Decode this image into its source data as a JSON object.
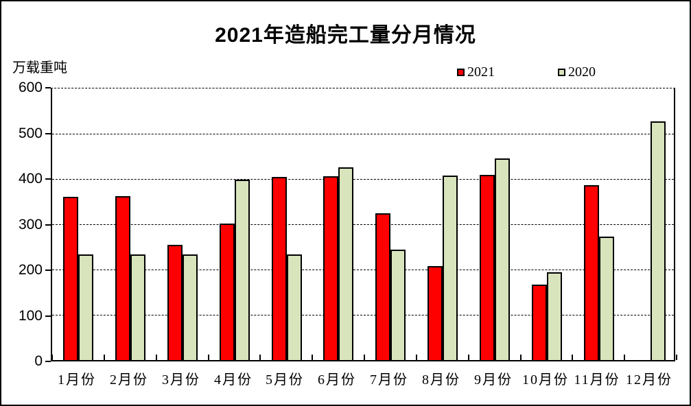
{
  "title": "2021年造船完工量分月情况",
  "unit_label": "万载重吨",
  "legend": {
    "items": [
      {
        "label": "2021",
        "color": "#FF0000"
      },
      {
        "label": "2020",
        "color": "#D8E4BC"
      }
    ]
  },
  "colors": {
    "series_2021": "#FF0000",
    "series_2020": "#D8E4BC",
    "axis": "#000000",
    "background": "#FFFFFF"
  },
  "chart_data": {
    "type": "bar",
    "title": "2021年造船完工量分月情况",
    "xlabel": "",
    "ylabel": "万载重吨",
    "categories": [
      "1月份",
      "2月份",
      "3月份",
      "4月份",
      "5月份",
      "6月份",
      "7月份",
      "8月份",
      "9月份",
      "10月份",
      "11月份",
      "12月份"
    ],
    "series": [
      {
        "name": "2021",
        "color": "#FF0000",
        "values": [
          360,
          362,
          255,
          301,
          405,
          406,
          325,
          208,
          409,
          166,
          387,
          null
        ]
      },
      {
        "name": "2020",
        "color": "#D8E4BC",
        "values": [
          233,
          234,
          233,
          398,
          234,
          426,
          244,
          407,
          446,
          194,
          272,
          528
        ]
      }
    ],
    "ylim": [
      0,
      600
    ],
    "yticks": [
      0,
      100,
      200,
      300,
      400,
      500,
      600
    ],
    "ytick_labels": [
      "0",
      "100",
      "200",
      "300",
      "400",
      "500",
      "600"
    ],
    "grid": "horizontal-dashed",
    "legend_position": "top-right"
  }
}
